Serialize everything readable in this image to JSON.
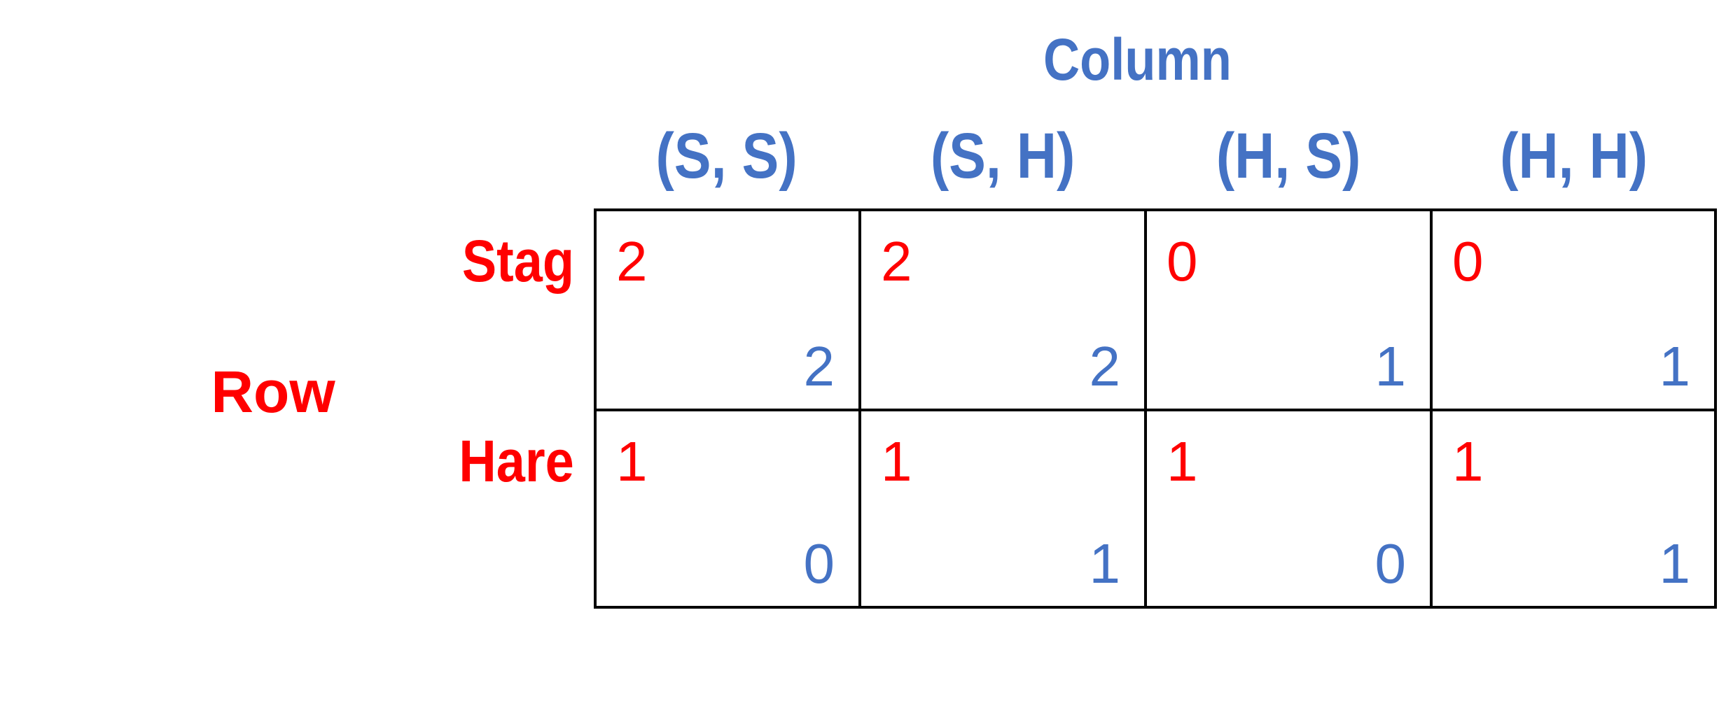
{
  "column_title": "Column",
  "row_title": "Row",
  "colors": {
    "row_player": "#ff0000",
    "column_player": "#4472c4",
    "grid": "#000000"
  },
  "column_strategies": [
    "(S, S)",
    "(S, H)",
    "(H, S)",
    "(H, H)"
  ],
  "row_strategies": [
    "Stag",
    "Hare"
  ],
  "payoffs": [
    [
      {
        "row": "2",
        "column": "2"
      },
      {
        "row": "2",
        "column": "2"
      },
      {
        "row": "0",
        "column": "1"
      },
      {
        "row": "0",
        "column": "1"
      }
    ],
    [
      {
        "row": "1",
        "column": "0"
      },
      {
        "row": "1",
        "column": "1"
      },
      {
        "row": "1",
        "column": "0"
      },
      {
        "row": "1",
        "column": "1"
      }
    ]
  ]
}
